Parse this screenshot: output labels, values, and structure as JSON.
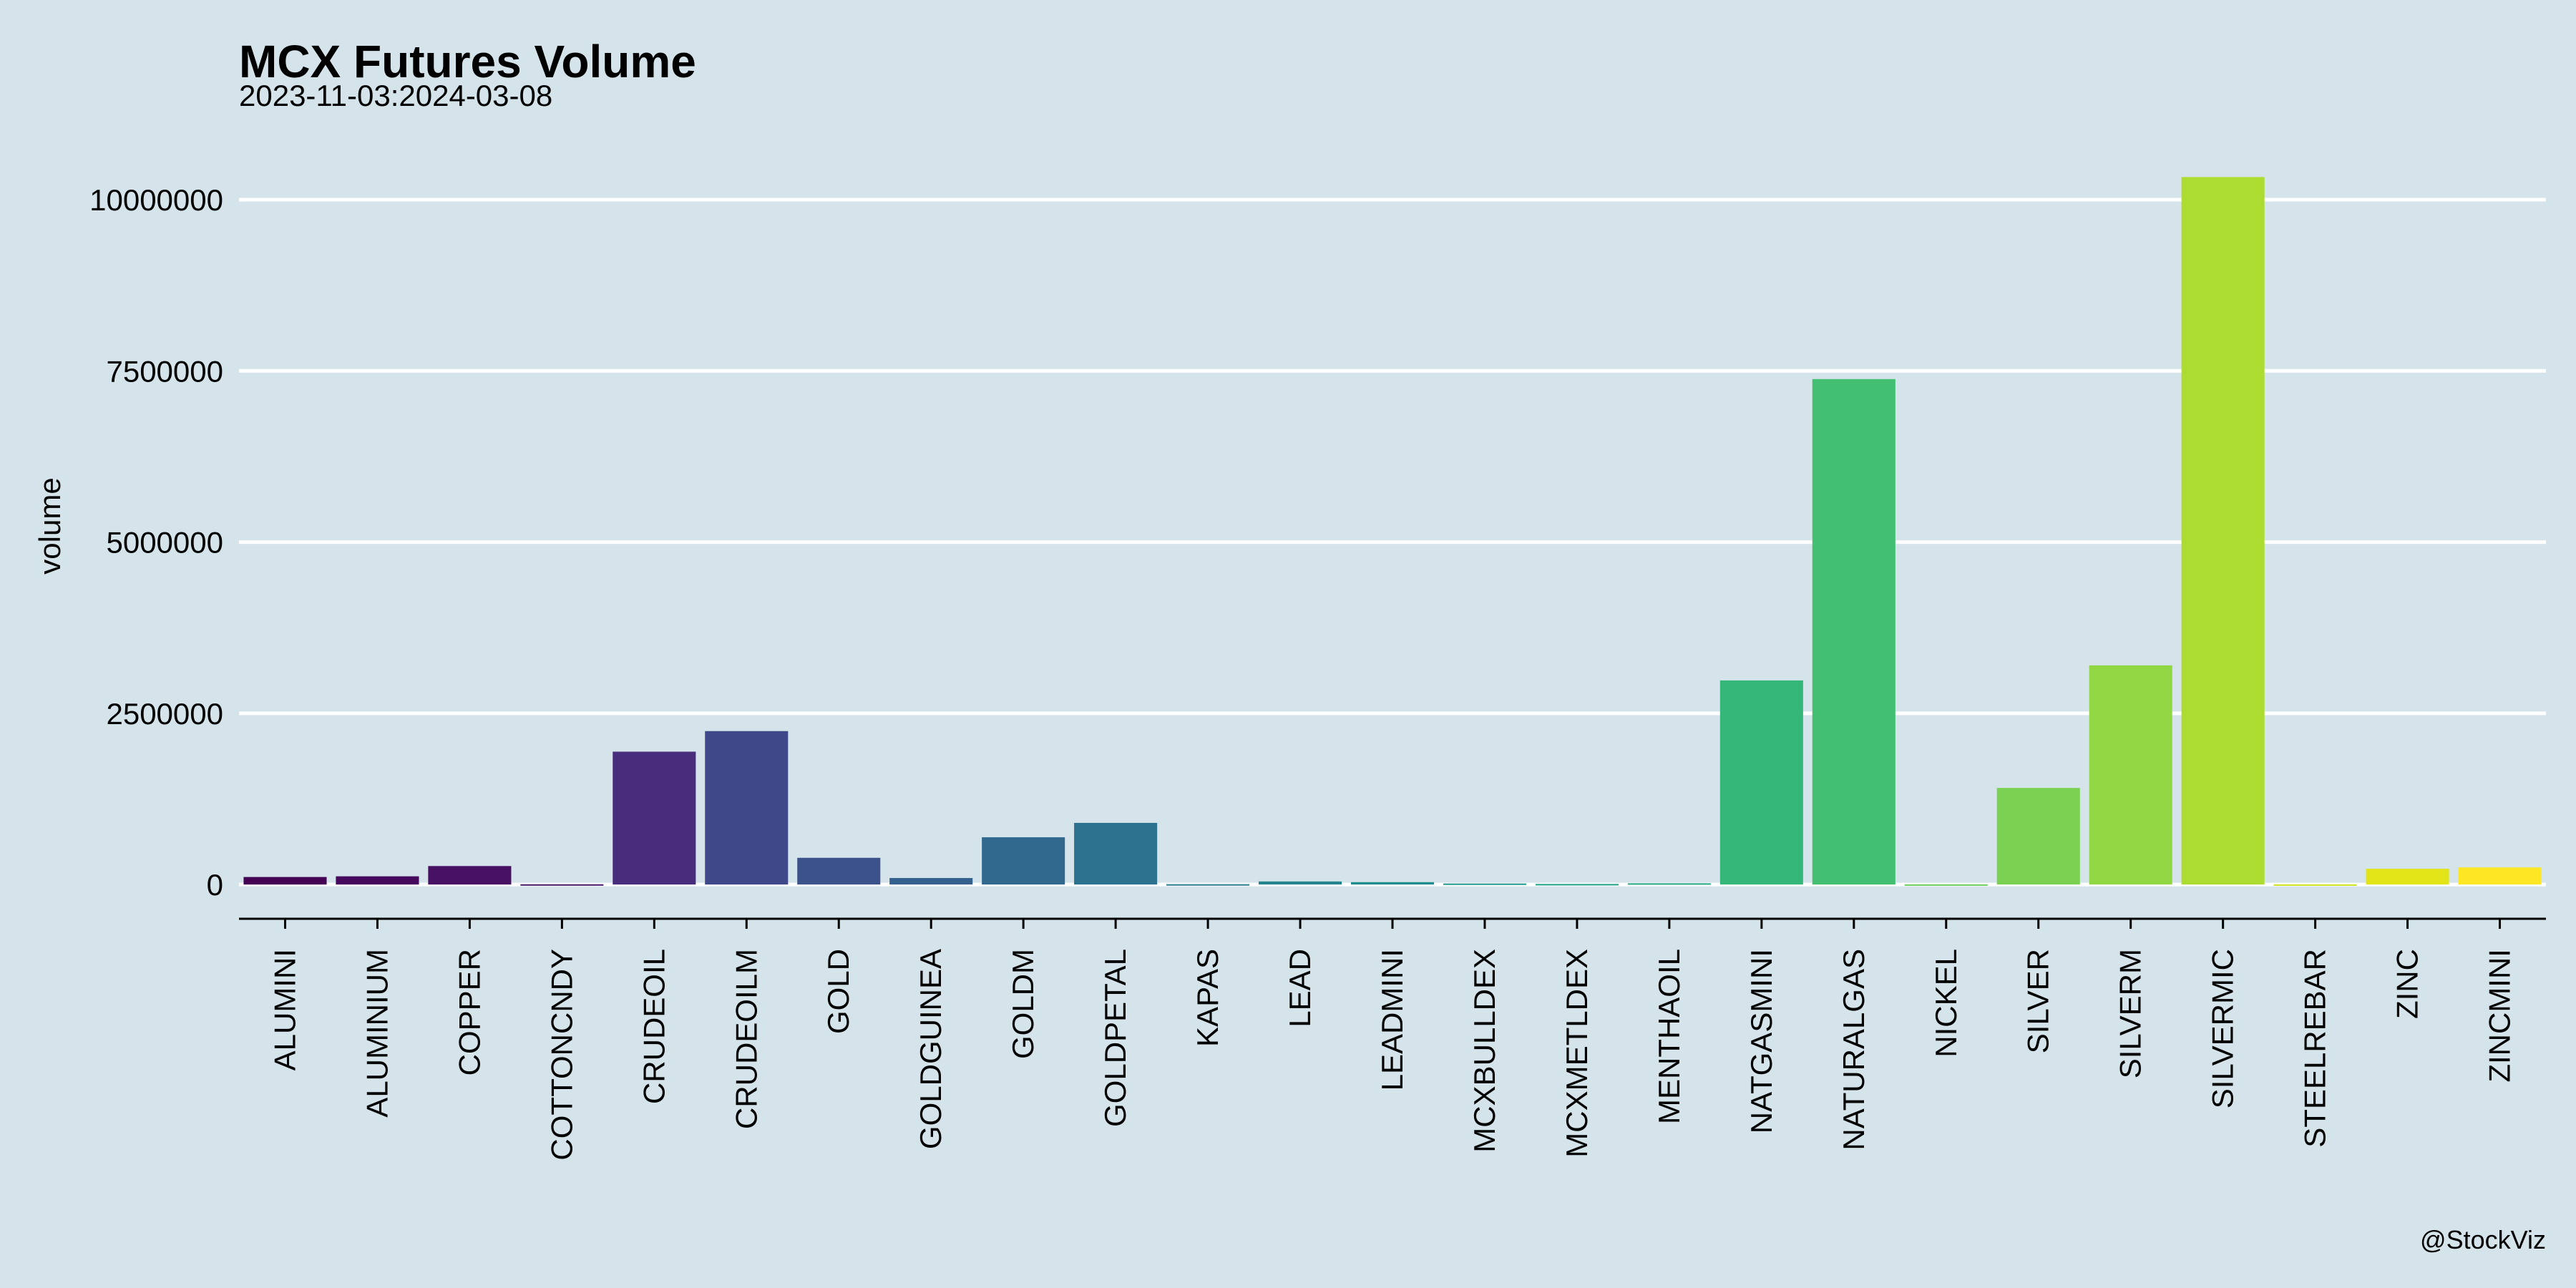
{
  "chart_data": {
    "type": "bar",
    "title": "MCX Futures Volume",
    "subtitle": "2023-11-03:2024-03-08",
    "xlabel": "",
    "ylabel": "volume",
    "caption": "@StockViz",
    "ylim": [
      -500000,
      10700000
    ],
    "yticks": [
      0,
      2500000,
      5000000,
      7500000,
      10000000
    ],
    "ytick_labels": [
      "0",
      "2500000",
      "5000000",
      "7500000",
      "10000000"
    ],
    "grid": "horizontal major",
    "legend": "none",
    "categories": [
      "ALUMINI",
      "ALUMINIUM",
      "COPPER",
      "COTTONCNDY",
      "CRUDEOIL",
      "CRUDEOILM",
      "GOLD",
      "GOLDGUINEA",
      "GOLDM",
      "GOLDPETAL",
      "KAPAS",
      "LEAD",
      "LEADMINI",
      "MCXBULLDEX",
      "MCXMETLDEX",
      "MENTHAOIL",
      "NATGASMINI",
      "NATURALGAS",
      "NICKEL",
      "SILVER",
      "SILVERM",
      "SILVERMIC",
      "STEELREBAR",
      "ZINC",
      "ZINCMINI"
    ],
    "values": [
      110000,
      120000,
      270000,
      4000,
      1940000,
      2240000,
      390000,
      95000,
      690000,
      900000,
      5000,
      45000,
      35000,
      15000,
      8000,
      18000,
      2980000,
      7380000,
      3000,
      1410000,
      3200000,
      10330000,
      3000,
      230000,
      250000
    ],
    "colors": [
      "#440154",
      "#46085c",
      "#471063",
      "#481769",
      "#472d7b",
      "#3f4889",
      "#3b528b",
      "#355f8d",
      "#31688e",
      "#2c728e",
      "#297b8e",
      "#25858e",
      "#228d8d",
      "#1f988b",
      "#1fa088",
      "#22a884",
      "#35b779",
      "#43bf71",
      "#6ccd5a",
      "#7ad151",
      "#90d743",
      "#addc30",
      "#cde11d",
      "#e2e418",
      "#fde725"
    ]
  }
}
